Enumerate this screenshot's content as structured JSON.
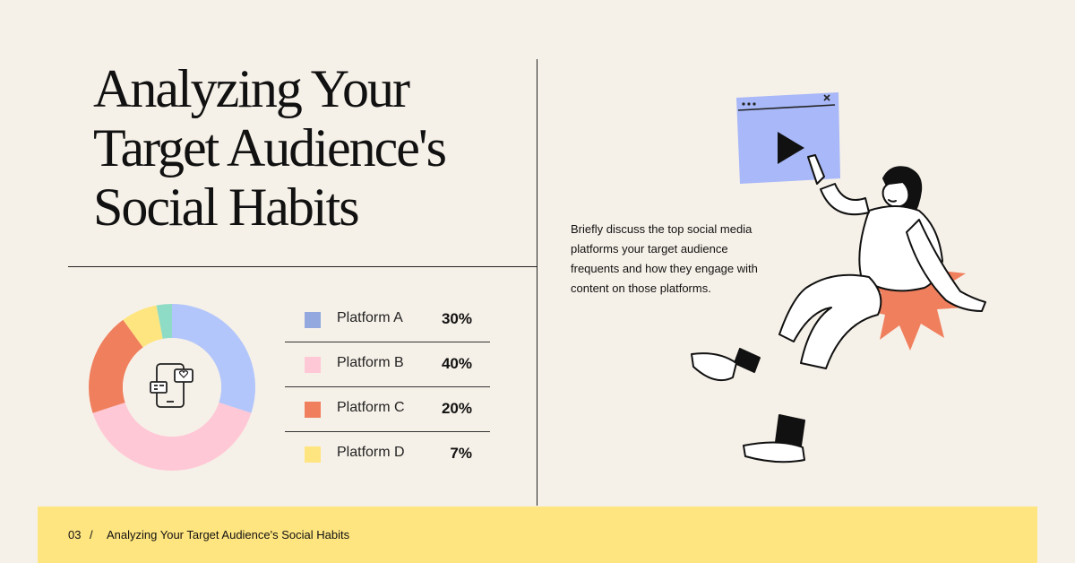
{
  "title_lines": [
    "Analyzing Your",
    "Target Audience's",
    "Social Habits"
  ],
  "description": "Briefly discuss the top social media platforms your target audience frequents and how they engage with content on those platforms.",
  "chart_data": {
    "type": "pie",
    "donut": true,
    "center_icon": "mobile-social-icon",
    "slices": [
      {
        "label": "Platform A",
        "value": 30,
        "display": "30%",
        "color": "#b3c6fb",
        "legend_color": "#93a8df"
      },
      {
        "label": "Platform B",
        "value": 40,
        "display": "40%",
        "color": "#ffc8d6",
        "legend_color": "#ffc8d6"
      },
      {
        "label": "Platform C",
        "value": 20,
        "display": "20%",
        "color": "#f07f5e",
        "legend_color": "#f07f5e"
      },
      {
        "label": "Platform D",
        "value": 7,
        "display": "7%",
        "color": "#ffe57f",
        "legend_color": "#ffe57f"
      },
      {
        "label": "",
        "value": 3,
        "display": "",
        "color": "#8fdcc6",
        "legend_color": "#8fdcc6"
      }
    ]
  },
  "footer": {
    "page_number": "03",
    "separator": "/",
    "title": "Analyzing Your Target Audience's Social Habits"
  },
  "colors": {
    "background": "#f6f1e8",
    "footer": "#ffe57f",
    "accent_blue": "#a8b8f8",
    "accent_orange": "#f07f5e"
  },
  "illustration": {
    "icons": [
      "video-player-icon",
      "play-icon",
      "person-pointing-icon",
      "burst-star-icon"
    ]
  }
}
